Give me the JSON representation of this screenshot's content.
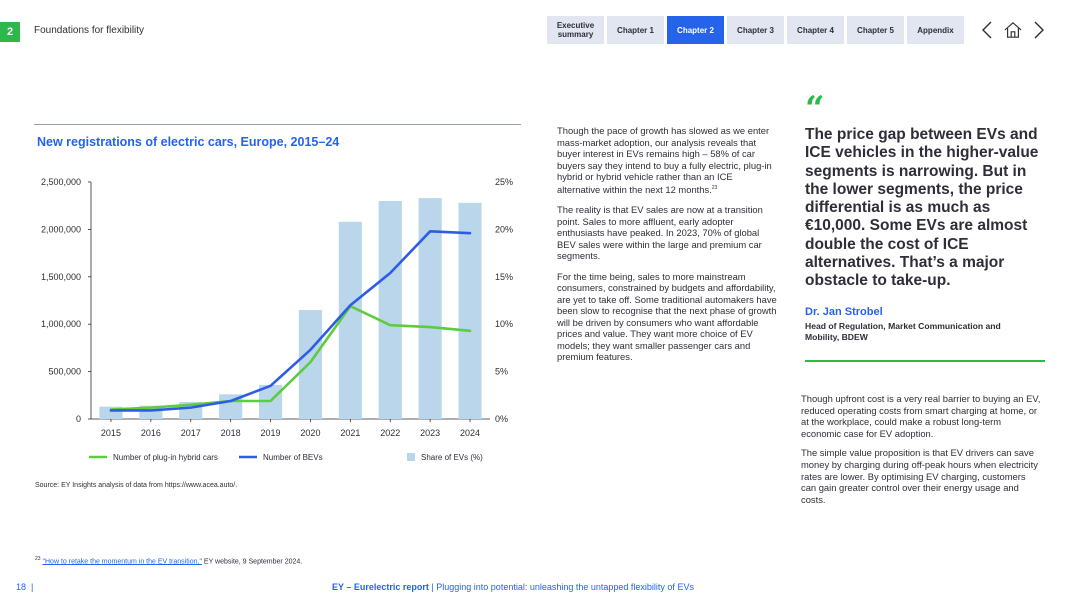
{
  "header": {
    "section_number": "2",
    "section_title": "Foundations for flexibility",
    "tabs": [
      {
        "label": "Executive summary",
        "active": false
      },
      {
        "label": "Chapter 1",
        "active": false
      },
      {
        "label": "Chapter 2",
        "active": true
      },
      {
        "label": "Chapter 3",
        "active": false
      },
      {
        "label": "Chapter 4",
        "active": false
      },
      {
        "label": "Chapter 5",
        "active": false
      },
      {
        "label": "Appendix",
        "active": false
      }
    ],
    "icons": [
      "chevron-left-icon",
      "home-icon",
      "chevron-right-icon"
    ]
  },
  "chart_title": "New registrations of electric cars, Europe, 2015–24",
  "chart_data": {
    "type": "bar",
    "title": "New registrations of electric cars, Europe, 2015–24",
    "categories": [
      "2015",
      "2016",
      "2017",
      "2018",
      "2019",
      "2020",
      "2021",
      "2022",
      "2023",
      "2024"
    ],
    "series": [
      {
        "name": "Number of plug-in hybrid cars",
        "type": "line",
        "axis": "left",
        "color": "#5dcc3f",
        "values": [
          100000,
          120000,
          150000,
          190000,
          190000,
          600000,
          1190000,
          990000,
          970000,
          930000
        ]
      },
      {
        "name": "Number of BEVs",
        "type": "line",
        "axis": "left",
        "color": "#2e5ce6",
        "values": [
          90000,
          90000,
          120000,
          190000,
          350000,
          730000,
          1200000,
          1540000,
          1980000,
          1960000
        ]
      },
      {
        "name": "Share of EVs (%)",
        "type": "bar",
        "axis": "right",
        "color": "#b9d6ea",
        "values": [
          1.3,
          1.4,
          1.8,
          2.6,
          3.6,
          11.5,
          20.8,
          23.0,
          23.3,
          22.8
        ]
      }
    ],
    "left_axis": {
      "range": [
        0,
        2500000
      ],
      "ticks": [
        "0",
        "500,000",
        "1,000,000",
        "1,500,000",
        "2,000,000",
        "2,500,000"
      ]
    },
    "right_axis": {
      "range": [
        0,
        25
      ],
      "ticks": [
        "0%",
        "5%",
        "10%",
        "15%",
        "20%",
        "25%"
      ]
    },
    "grid": false,
    "legend_position": "bottom"
  },
  "source": "Source: EY Insights analysis of data from https://www.acea.auto/.",
  "footnote": {
    "number": "23",
    "link_text": "\"How to retake the momentum in the EV transition,\"",
    "rest": " EY website, 9 September 2024."
  },
  "middle_column": {
    "p1": "Though the pace of growth has slowed as we enter mass-market adoption, our analysis reveals that buyer interest in EVs remains high – 58% of car buyers say they intend to buy a fully electric, plug-in hybrid or hybrid vehicle rather than an ICE alternative within the next 12 months.",
    "p1_sup": "23",
    "p2": "The reality is that EV sales are now at a transition point. Sales to more affluent, early adopter enthusiasts have peaked. In 2023, 70% of global BEV sales were within the large and premium car segments.",
    "p3": "For the time being, sales to more mainstream consumers, constrained by budgets and affordability, are yet to take off. Some traditional automakers have been slow to recognise that the next phase of growth will be driven by consumers who want affordable prices and value. They want more choice of EV models; they want smaller passenger cars and premium features."
  },
  "quote": {
    "mark": "“",
    "text": "The price gap between EVs and ICE vehicles in the higher-value segments is narrowing. But in the lower segments, the price differential is as much as €10,000. Some EVs are almost double the cost of ICE alternatives. That’s a major obstacle to take-up.",
    "author": "Dr. Jan Strobel",
    "role": "Head of Regulation, Market Communication and Mobility, BDEW"
  },
  "right_column": {
    "p1": "Though upfront cost is a very real barrier to buying an EV, reduced operating costs from smart charging at home, or at the workplace, could make a robust long-term economic case for EV adoption.",
    "p2": "The simple value proposition is that EV drivers can save money by charging during off-peak hours when electricity rates are lower. By optimising EV charging, customers can gain greater control over their energy usage and costs."
  },
  "footer": {
    "page_number": "18",
    "separator": "|",
    "report_name": "EY – Eurelectric report",
    "divider": "|",
    "subtitle": "Plugging into potential: unleashing the untapped flexibility of EVs"
  }
}
